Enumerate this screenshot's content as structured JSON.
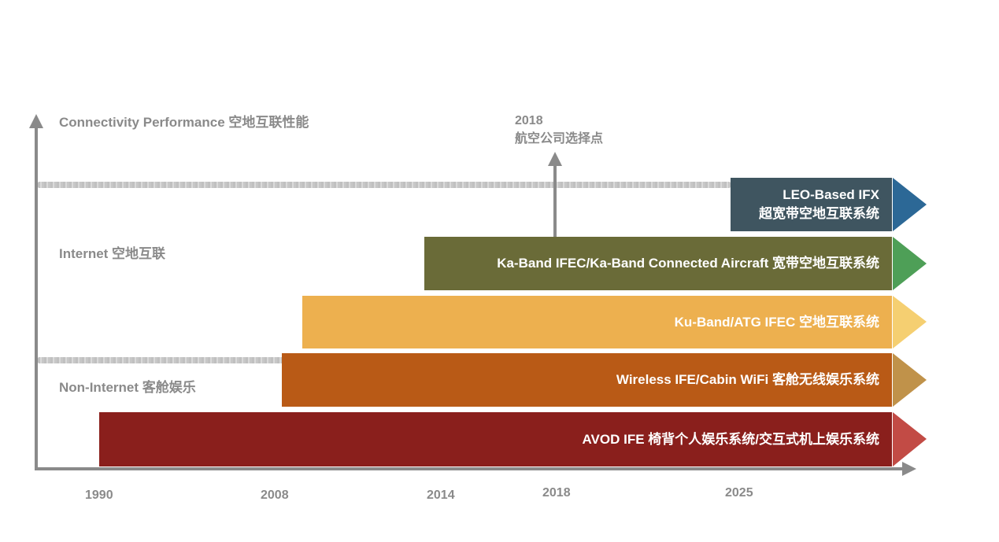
{
  "axes": {
    "y_label": "Connectivity Performance 空地互联性能"
  },
  "regions": {
    "internet": "Internet 空地互联",
    "non_internet": "Non-Internet 客舱娱乐"
  },
  "milestone": {
    "year": "2018",
    "label": "航空公司选择点"
  },
  "bars": [
    {
      "line1": "LEO-Based IFX",
      "line2": "超宽带空地互联系统",
      "color": "#3f5560",
      "tip_color": "#2c6896"
    },
    {
      "line1": "Ka-Band IFEC/Ka-Band Connected Aircraft 宽带空地互联系统",
      "color": "#6a6b38",
      "tip_color": "#4e9f57"
    },
    {
      "line1": "Ku-Band/ATG IFEC 空地互联系统",
      "color": "#edb04f",
      "tip_color": "#f5cf71"
    },
    {
      "line1": "Wireless IFE/Cabin WiFi 客舱无线娱乐系统",
      "color": "#b95a16",
      "tip_color": "#c0924a"
    },
    {
      "line1": "AVOD IFE 椅背个人娱乐系统/交互式机上娱乐系统",
      "color": "#8a1f1c",
      "tip_color": "#c24b45"
    }
  ],
  "years": [
    "1990",
    "2008",
    "2014",
    "2018",
    "2025"
  ]
}
